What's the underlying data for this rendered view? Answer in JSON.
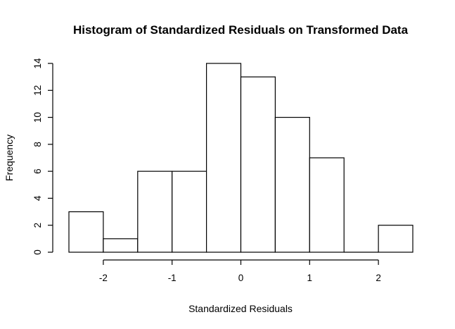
{
  "chart_data": {
    "type": "bar",
    "title": "Histogram of Standardized Residuals on Transformed Data",
    "xlabel": "Standardized Residuals",
    "ylabel": "Frequency",
    "bins": [
      {
        "from": -2.5,
        "to": -2.0,
        "count": 3
      },
      {
        "from": -2.0,
        "to": -1.5,
        "count": 1
      },
      {
        "from": -1.5,
        "to": -1.0,
        "count": 6
      },
      {
        "from": -1.0,
        "to": -0.5,
        "count": 6
      },
      {
        "from": -0.5,
        "to": 0.0,
        "count": 14
      },
      {
        "from": 0.0,
        "to": 0.5,
        "count": 13
      },
      {
        "from": 0.5,
        "to": 1.0,
        "count": 10
      },
      {
        "from": 1.0,
        "to": 1.5,
        "count": 7
      },
      {
        "from": 1.5,
        "to": 2.0,
        "count": 0
      },
      {
        "from": 2.0,
        "to": 2.5,
        "count": 2
      }
    ],
    "xlim": [
      -2.5,
      2.5
    ],
    "ylim": [
      0,
      14
    ],
    "x_ticks": [
      -2,
      -1,
      0,
      1,
      2
    ],
    "x_tick_labels": [
      "-2",
      "-1",
      "0",
      "1",
      "2"
    ],
    "y_ticks": [
      0,
      2,
      4,
      6,
      8,
      10,
      12,
      14
    ],
    "y_tick_labels": [
      "0",
      "2",
      "4",
      "6",
      "8",
      "10",
      "12",
      "14"
    ],
    "grid": false,
    "legend": "none",
    "colors": {
      "bar_fill": "#ffffff",
      "bar_stroke": "#000000",
      "axis": "#000000",
      "background": "#ffffff"
    }
  }
}
